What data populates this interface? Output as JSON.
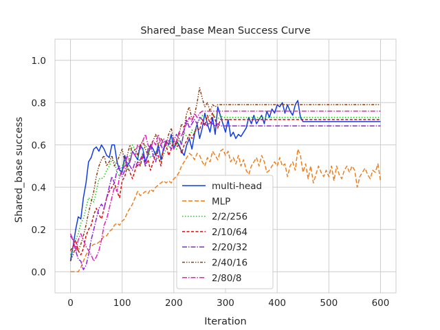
{
  "chart_data": {
    "type": "line",
    "title": "Shared_base Mean Success Curve",
    "xlabel": "Iteration",
    "ylabel": "Shared_base success",
    "xlim": [
      -30,
      630
    ],
    "ylim": [
      -0.1,
      1.1
    ],
    "xticks": [
      0,
      100,
      200,
      300,
      400,
      500,
      600
    ],
    "yticks": [
      0.0,
      0.2,
      0.4,
      0.6,
      0.8,
      1.0
    ],
    "xtick_labels": [
      "0",
      "100",
      "200",
      "300",
      "400",
      "500",
      "600"
    ],
    "ytick_labels": [
      "0.0",
      "0.2",
      "0.4",
      "0.6",
      "0.8",
      "1.0"
    ],
    "grid": true,
    "legend_position": "lower-center",
    "series": [
      {
        "name": "multi-head",
        "color": "#0d3ce6",
        "dash": "solid",
        "x": [
          0,
          5,
          10,
          15,
          20,
          25,
          30,
          35,
          40,
          45,
          50,
          55,
          60,
          65,
          70,
          75,
          80,
          85,
          90,
          95,
          100,
          105,
          110,
          115,
          120,
          125,
          130,
          135,
          140,
          145,
          150,
          155,
          160,
          165,
          170,
          175,
          180,
          185,
          190,
          195,
          200,
          205,
          210,
          215,
          220,
          225,
          230,
          235,
          240,
          245,
          250,
          255,
          260,
          265,
          270,
          275,
          280,
          285,
          290,
          295,
          300,
          305,
          310,
          315,
          320,
          325,
          330,
          335,
          340,
          345,
          350,
          355,
          360,
          365,
          370,
          375,
          380,
          385,
          390,
          395,
          400,
          405,
          410,
          415,
          420,
          425,
          430,
          435,
          440,
          445,
          450,
          500,
          550,
          600
        ],
        "y": [
          0.05,
          0.12,
          0.2,
          0.26,
          0.25,
          0.35,
          0.42,
          0.52,
          0.54,
          0.58,
          0.59,
          0.57,
          0.6,
          0.58,
          0.55,
          0.54,
          0.6,
          0.6,
          0.52,
          0.48,
          0.47,
          0.55,
          0.5,
          0.52,
          0.57,
          0.55,
          0.53,
          0.6,
          0.58,
          0.52,
          0.55,
          0.6,
          0.58,
          0.55,
          0.6,
          0.53,
          0.58,
          0.62,
          0.6,
          0.65,
          0.58,
          0.62,
          0.6,
          0.57,
          0.55,
          0.6,
          0.63,
          0.58,
          0.65,
          0.7,
          0.63,
          0.68,
          0.75,
          0.7,
          0.66,
          0.73,
          0.65,
          0.78,
          0.74,
          0.7,
          0.66,
          0.72,
          0.64,
          0.66,
          0.63,
          0.65,
          0.64,
          0.66,
          0.68,
          0.73,
          0.7,
          0.74,
          0.7,
          0.72,
          0.74,
          0.7,
          0.76,
          0.73,
          0.77,
          0.75,
          0.79,
          0.78,
          0.8,
          0.75,
          0.79,
          0.76,
          0.74,
          0.79,
          0.81,
          0.73,
          0.71,
          0.71,
          0.71,
          0.71
        ]
      },
      {
        "name": "MLP",
        "color": "#f07d1a",
        "dash": "6,3",
        "x": [
          0,
          10,
          15,
          20,
          25,
          30,
          35,
          40,
          45,
          50,
          55,
          60,
          65,
          70,
          75,
          80,
          85,
          90,
          95,
          100,
          105,
          110,
          115,
          120,
          125,
          130,
          135,
          140,
          145,
          150,
          155,
          160,
          165,
          170,
          175,
          180,
          185,
          190,
          195,
          200,
          205,
          210,
          215,
          220,
          225,
          230,
          235,
          240,
          245,
          250,
          255,
          260,
          265,
          270,
          275,
          280,
          285,
          290,
          295,
          300,
          305,
          310,
          315,
          320,
          325,
          330,
          335,
          340,
          345,
          350,
          355,
          360,
          365,
          370,
          375,
          380,
          385,
          390,
          395,
          400,
          405,
          410,
          415,
          420,
          425,
          430,
          435,
          440,
          445,
          450,
          455,
          460,
          465,
          470,
          475,
          480,
          485,
          490,
          495,
          500,
          505,
          510,
          515,
          520,
          525,
          530,
          535,
          540,
          545,
          550,
          555,
          560,
          565,
          570,
          575,
          580,
          585,
          590,
          595,
          600
        ],
        "y": [
          0.0,
          0.0,
          0.0,
          0.02,
          0.05,
          0.08,
          0.1,
          0.12,
          0.13,
          0.13,
          0.14,
          0.15,
          0.17,
          0.17,
          0.19,
          0.2,
          0.22,
          0.23,
          0.22,
          0.24,
          0.25,
          0.28,
          0.3,
          0.32,
          0.35,
          0.38,
          0.36,
          0.37,
          0.38,
          0.37,
          0.39,
          0.38,
          0.4,
          0.41,
          0.42,
          0.43,
          0.42,
          0.43,
          0.42,
          0.44,
          0.45,
          0.47,
          0.5,
          0.52,
          0.54,
          0.56,
          0.55,
          0.53,
          0.56,
          0.55,
          0.52,
          0.5,
          0.54,
          0.52,
          0.57,
          0.55,
          0.53,
          0.57,
          0.58,
          0.55,
          0.57,
          0.52,
          0.54,
          0.51,
          0.55,
          0.5,
          0.53,
          0.48,
          0.46,
          0.5,
          0.52,
          0.54,
          0.5,
          0.55,
          0.52,
          0.47,
          0.48,
          0.5,
          0.52,
          0.5,
          0.54,
          0.5,
          0.51,
          0.45,
          0.5,
          0.52,
          0.48,
          0.58,
          0.55,
          0.47,
          0.51,
          0.44,
          0.5,
          0.42,
          0.46,
          0.5,
          0.47,
          0.45,
          0.48,
          0.45,
          0.5,
          0.43,
          0.5,
          0.46,
          0.44,
          0.48,
          0.5,
          0.47,
          0.5,
          0.48,
          0.4,
          0.45,
          0.47,
          0.49,
          0.46,
          0.44,
          0.48,
          0.47,
          0.51,
          0.43
        ]
      },
      {
        "name": "2/2/256",
        "color": "#14c814",
        "dash": "1.5,2.5",
        "x": [
          0,
          5,
          10,
          15,
          20,
          25,
          30,
          35,
          40,
          45,
          50,
          55,
          60,
          65,
          70,
          75,
          80,
          85,
          90,
          95,
          100,
          105,
          110,
          115,
          120,
          125,
          130,
          135,
          140,
          145,
          150,
          155,
          160,
          165,
          170,
          175,
          180,
          185,
          190,
          195,
          200,
          205,
          210,
          215,
          220,
          225,
          230,
          235,
          240,
          245,
          250,
          255,
          260,
          265,
          270,
          275,
          280,
          285,
          290,
          295,
          300,
          600
        ],
        "y": [
          0.08,
          0.12,
          0.15,
          0.18,
          0.23,
          0.25,
          0.3,
          0.35,
          0.34,
          0.33,
          0.38,
          0.44,
          0.44,
          0.45,
          0.48,
          0.5,
          0.53,
          0.52,
          0.47,
          0.45,
          0.5,
          0.52,
          0.48,
          0.55,
          0.6,
          0.58,
          0.55,
          0.5,
          0.57,
          0.6,
          0.58,
          0.54,
          0.55,
          0.57,
          0.53,
          0.52,
          0.55,
          0.58,
          0.6,
          0.62,
          0.6,
          0.58,
          0.63,
          0.61,
          0.66,
          0.64,
          0.63,
          0.67,
          0.66,
          0.7,
          0.72,
          0.74,
          0.73,
          0.72,
          0.74,
          0.75,
          0.73,
          0.72,
          0.74,
          0.73,
          0.73,
          0.73
        ]
      },
      {
        "name": "2/10/64",
        "color": "#dc0a0a",
        "dash": "4,2.5",
        "x": [
          0,
          5,
          10,
          15,
          20,
          25,
          30,
          35,
          40,
          45,
          50,
          55,
          60,
          65,
          70,
          75,
          80,
          85,
          90,
          95,
          100,
          105,
          110,
          115,
          120,
          125,
          130,
          135,
          140,
          145,
          150,
          155,
          160,
          165,
          170,
          175,
          180,
          185,
          190,
          195,
          200,
          205,
          210,
          215,
          220,
          225,
          230,
          235,
          240,
          245,
          250,
          255,
          260,
          265,
          270,
          275,
          280,
          285,
          290,
          295,
          300,
          600
        ],
        "y": [
          0.1,
          0.12,
          0.15,
          0.1,
          0.08,
          0.11,
          0.17,
          0.2,
          0.22,
          0.27,
          0.3,
          0.27,
          0.25,
          0.3,
          0.35,
          0.38,
          0.4,
          0.42,
          0.38,
          0.35,
          0.43,
          0.45,
          0.5,
          0.47,
          0.44,
          0.48,
          0.52,
          0.5,
          0.55,
          0.5,
          0.53,
          0.48,
          0.52,
          0.56,
          0.55,
          0.5,
          0.58,
          0.6,
          0.55,
          0.58,
          0.62,
          0.59,
          0.6,
          0.56,
          0.6,
          0.62,
          0.65,
          0.63,
          0.66,
          0.68,
          0.67,
          0.72,
          0.69,
          0.74,
          0.7,
          0.75,
          0.72,
          0.68,
          0.72,
          0.72,
          0.72,
          0.72
        ]
      },
      {
        "name": "2/20/32",
        "color": "#8c1ee6",
        "dash": "7,2,1.5,2",
        "x": [
          0,
          5,
          10,
          15,
          20,
          25,
          30,
          35,
          40,
          45,
          50,
          55,
          60,
          65,
          70,
          75,
          80,
          85,
          90,
          95,
          100,
          105,
          110,
          115,
          120,
          125,
          130,
          135,
          140,
          145,
          150,
          155,
          160,
          165,
          170,
          175,
          180,
          185,
          190,
          195,
          200,
          205,
          210,
          215,
          220,
          225,
          230,
          235,
          240,
          245,
          250,
          255,
          260,
          265,
          270,
          275,
          280,
          285,
          290,
          295,
          300,
          600
        ],
        "y": [
          0.17,
          0.15,
          0.1,
          0.06,
          0.05,
          0.01,
          0.03,
          0.08,
          0.15,
          0.2,
          0.25,
          0.3,
          0.32,
          0.3,
          0.35,
          0.4,
          0.45,
          0.42,
          0.48,
          0.5,
          0.45,
          0.48,
          0.52,
          0.5,
          0.48,
          0.52,
          0.5,
          0.53,
          0.56,
          0.5,
          0.58,
          0.6,
          0.55,
          0.52,
          0.58,
          0.6,
          0.57,
          0.62,
          0.6,
          0.58,
          0.62,
          0.65,
          0.63,
          0.6,
          0.67,
          0.72,
          0.68,
          0.7,
          0.72,
          0.7,
          0.73,
          0.72,
          0.7,
          0.69,
          0.71,
          0.7,
          0.69,
          0.7,
          0.69,
          0.69,
          0.69,
          0.69
        ]
      },
      {
        "name": "2/40/16",
        "color": "#8c3c0a",
        "dash": "4,2,1.5,2,1.5,2",
        "x": [
          0,
          5,
          10,
          15,
          20,
          25,
          30,
          35,
          40,
          45,
          50,
          55,
          60,
          65,
          70,
          75,
          80,
          85,
          90,
          95,
          100,
          105,
          110,
          115,
          120,
          125,
          130,
          135,
          140,
          145,
          150,
          155,
          160,
          165,
          170,
          175,
          180,
          185,
          190,
          195,
          200,
          205,
          210,
          215,
          220,
          225,
          230,
          235,
          240,
          245,
          250,
          255,
          260,
          265,
          270,
          275,
          280,
          285,
          290,
          295,
          300,
          600
        ],
        "y": [
          0.05,
          0.08,
          0.12,
          0.1,
          0.13,
          0.17,
          0.22,
          0.28,
          0.33,
          0.38,
          0.45,
          0.5,
          0.53,
          0.55,
          0.5,
          0.52,
          0.55,
          0.5,
          0.52,
          0.55,
          0.58,
          0.52,
          0.55,
          0.6,
          0.56,
          0.58,
          0.55,
          0.6,
          0.62,
          0.58,
          0.55,
          0.6,
          0.62,
          0.65,
          0.6,
          0.63,
          0.61,
          0.6,
          0.65,
          0.68,
          0.62,
          0.6,
          0.65,
          0.7,
          0.68,
          0.75,
          0.78,
          0.72,
          0.74,
          0.8,
          0.87,
          0.82,
          0.78,
          0.8,
          0.76,
          0.79,
          0.78,
          0.79,
          0.79,
          0.79,
          0.79,
          0.79
        ]
      },
      {
        "name": "2/80/8",
        "color": "#e61eb4",
        "dash": "7,2,1.5,2",
        "x": [
          0,
          5,
          10,
          15,
          20,
          25,
          30,
          35,
          40,
          45,
          50,
          55,
          60,
          65,
          70,
          75,
          80,
          85,
          90,
          95,
          100,
          105,
          110,
          115,
          120,
          125,
          130,
          135,
          140,
          145,
          150,
          155,
          160,
          165,
          170,
          175,
          180,
          185,
          190,
          195,
          200,
          205,
          210,
          215,
          220,
          225,
          230,
          235,
          240,
          245,
          250,
          255,
          260,
          265,
          270,
          275,
          280,
          285,
          290,
          295,
          300,
          600
        ],
        "y": [
          0.18,
          0.15,
          0.1,
          0.15,
          0.18,
          0.15,
          0.12,
          0.1,
          0.08,
          0.05,
          0.07,
          0.1,
          0.15,
          0.22,
          0.25,
          0.3,
          0.35,
          0.4,
          0.38,
          0.45,
          0.48,
          0.5,
          0.55,
          0.52,
          0.57,
          0.55,
          0.6,
          0.58,
          0.62,
          0.65,
          0.6,
          0.58,
          0.62,
          0.6,
          0.65,
          0.6,
          0.63,
          0.6,
          0.62,
          0.6,
          0.58,
          0.62,
          0.66,
          0.64,
          0.68,
          0.7,
          0.73,
          0.71,
          0.75,
          0.73,
          0.75,
          0.76,
          0.76,
          0.76,
          0.76,
          0.76,
          0.76,
          0.76,
          0.76,
          0.76,
          0.76,
          0.76
        ]
      }
    ]
  }
}
